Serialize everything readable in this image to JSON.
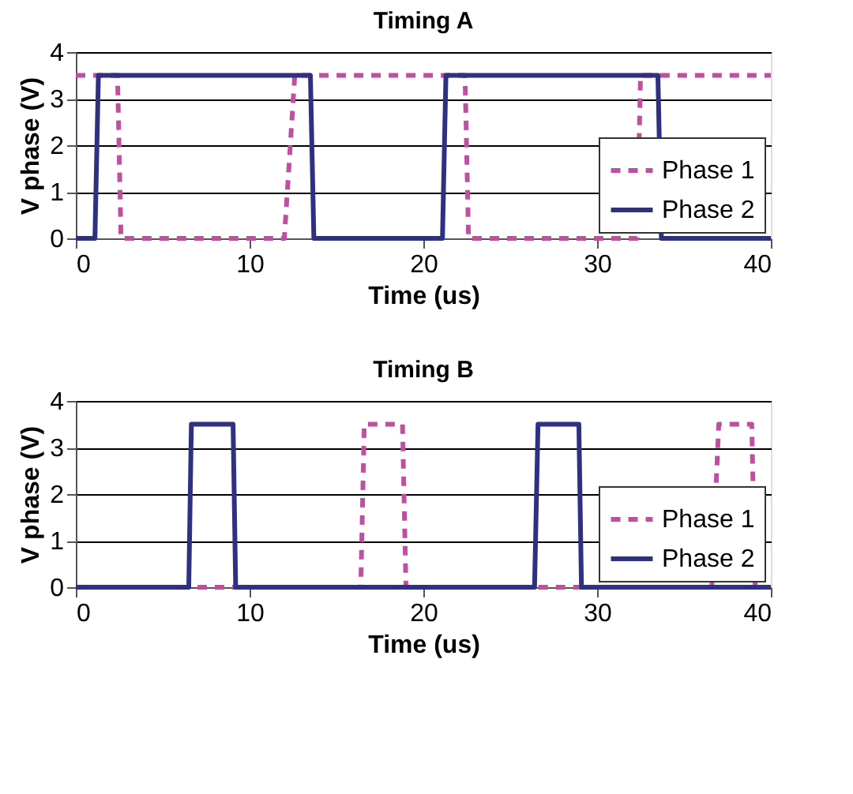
{
  "chart_data": [
    {
      "type": "line",
      "title": "Timing A",
      "xlabel": "Time (us)",
      "ylabel": "V phase (V)",
      "xlim": [
        0,
        40
      ],
      "xticks": [
        0,
        10,
        20,
        30,
        40
      ],
      "ylim": [
        0,
        4
      ],
      "yticks": [
        0,
        1,
        2,
        3,
        4
      ],
      "grid": "y",
      "legend": "bottom right",
      "marker": "none",
      "series": [
        {
          "name": "Phase 1",
          "color": "#c0509f",
          "line_style": "dashed",
          "x": [
            0,
            2.4,
            2.6,
            12.0,
            12.6,
            22.4,
            22.6,
            32.3,
            32.5,
            40
          ],
          "values": [
            3.5,
            3.5,
            0,
            0,
            3.5,
            3.5,
            0,
            0,
            3.5,
            3.5
          ]
        },
        {
          "name": "Phase 2",
          "color": "#2e3182",
          "line_style": "solid",
          "x": [
            0,
            1.1,
            1.3,
            13.5,
            13.7,
            21.1,
            21.3,
            33.5,
            33.7,
            40
          ],
          "values": [
            0,
            0,
            3.5,
            3.5,
            0,
            0,
            3.5,
            3.5,
            0,
            0
          ]
        }
      ]
    },
    {
      "type": "line",
      "title": "Timing B",
      "xlabel": "Time (us)",
      "ylabel": "V phase (V)",
      "xlim": [
        0,
        40
      ],
      "xticks": [
        0,
        10,
        20,
        30,
        40
      ],
      "ylim": [
        0,
        4
      ],
      "yticks": [
        0,
        1,
        2,
        3,
        4
      ],
      "grid": "y",
      "legend": "bottom right",
      "marker": "none",
      "series": [
        {
          "name": "Phase 1",
          "color": "#c0509f",
          "line_style": "dashed",
          "x": [
            0,
            16.4,
            16.6,
            18.8,
            19.0,
            36.6,
            37.0,
            38.9,
            39.1,
            40
          ],
          "values": [
            0,
            0,
            3.5,
            3.5,
            0,
            0,
            3.5,
            3.5,
            0,
            0
          ]
        },
        {
          "name": "Phase 2",
          "color": "#2e3182",
          "line_style": "solid",
          "x": [
            0,
            6.5,
            6.65,
            9.05,
            9.2,
            26.4,
            26.6,
            28.95,
            29.1,
            40
          ],
          "values": [
            0,
            0,
            3.5,
            3.5,
            0,
            0,
            3.5,
            3.5,
            0,
            0
          ]
        }
      ]
    }
  ]
}
